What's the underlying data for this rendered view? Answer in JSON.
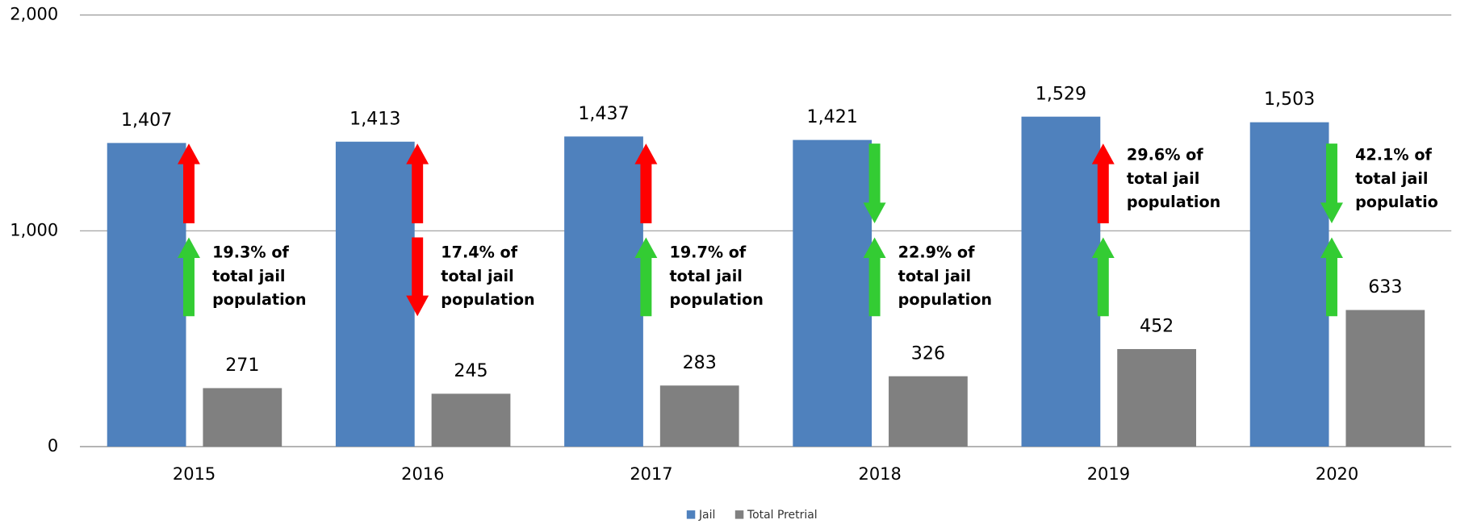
{
  "chart_data": {
    "type": "bar",
    "categories": [
      "2015",
      "2016",
      "2017",
      "2018",
      "2019",
      "2020"
    ],
    "series": [
      {
        "name": "Jail",
        "color": "#4f81bd",
        "values": [
          1407,
          1413,
          1437,
          1421,
          1529,
          1503
        ],
        "value_labels": [
          "1,407",
          "1,413",
          "1,437",
          "1,421",
          "1,529",
          "1,503"
        ]
      },
      {
        "name": "Total Pretrial",
        "color": "#808080",
        "values": [
          271,
          245,
          283,
          326,
          452,
          633
        ]
      }
    ],
    "ylim": [
      0,
      2000
    ],
    "yticks": [
      0,
      {
        "value": 1000,
        "label": "1,000"
      },
      {
        "value": 2000,
        "label": "2,000"
      }
    ],
    "grid": true,
    "legend": "bottom",
    "annotations": [
      {
        "text": [
          "19.3% of",
          "total jail",
          "population"
        ],
        "position": "lower",
        "upper_arrow": {
          "direction": "up",
          "color": "#ff0000"
        },
        "lower_arrow": {
          "direction": "up",
          "color": "#33cc33"
        }
      },
      {
        "text": [
          "17.4% of",
          "total jail",
          "population"
        ],
        "position": "lower",
        "upper_arrow": {
          "direction": "up",
          "color": "#ff0000"
        },
        "lower_arrow": {
          "direction": "down",
          "color": "#ff0000"
        }
      },
      {
        "text": [
          "19.7% of",
          "total jail",
          "population"
        ],
        "position": "lower",
        "upper_arrow": {
          "direction": "up",
          "color": "#ff0000"
        },
        "lower_arrow": {
          "direction": "up",
          "color": "#33cc33"
        }
      },
      {
        "text": [
          "22.9% of",
          "total jail",
          "population"
        ],
        "position": "lower",
        "upper_arrow": {
          "direction": "down",
          "color": "#33cc33"
        },
        "lower_arrow": {
          "direction": "up",
          "color": "#33cc33"
        }
      },
      {
        "text": [
          "29.6% of",
          "total jail",
          "population"
        ],
        "position": "upper",
        "upper_arrow": {
          "direction": "up",
          "color": "#ff0000"
        },
        "lower_arrow": {
          "direction": "up",
          "color": "#33cc33"
        }
      },
      {
        "text": [
          "42.1% of",
          "total jail",
          "populatio"
        ],
        "position": "upper",
        "upper_arrow": {
          "direction": "down",
          "color": "#33cc33"
        },
        "lower_arrow": {
          "direction": "up",
          "color": "#33cc33"
        }
      }
    ]
  }
}
